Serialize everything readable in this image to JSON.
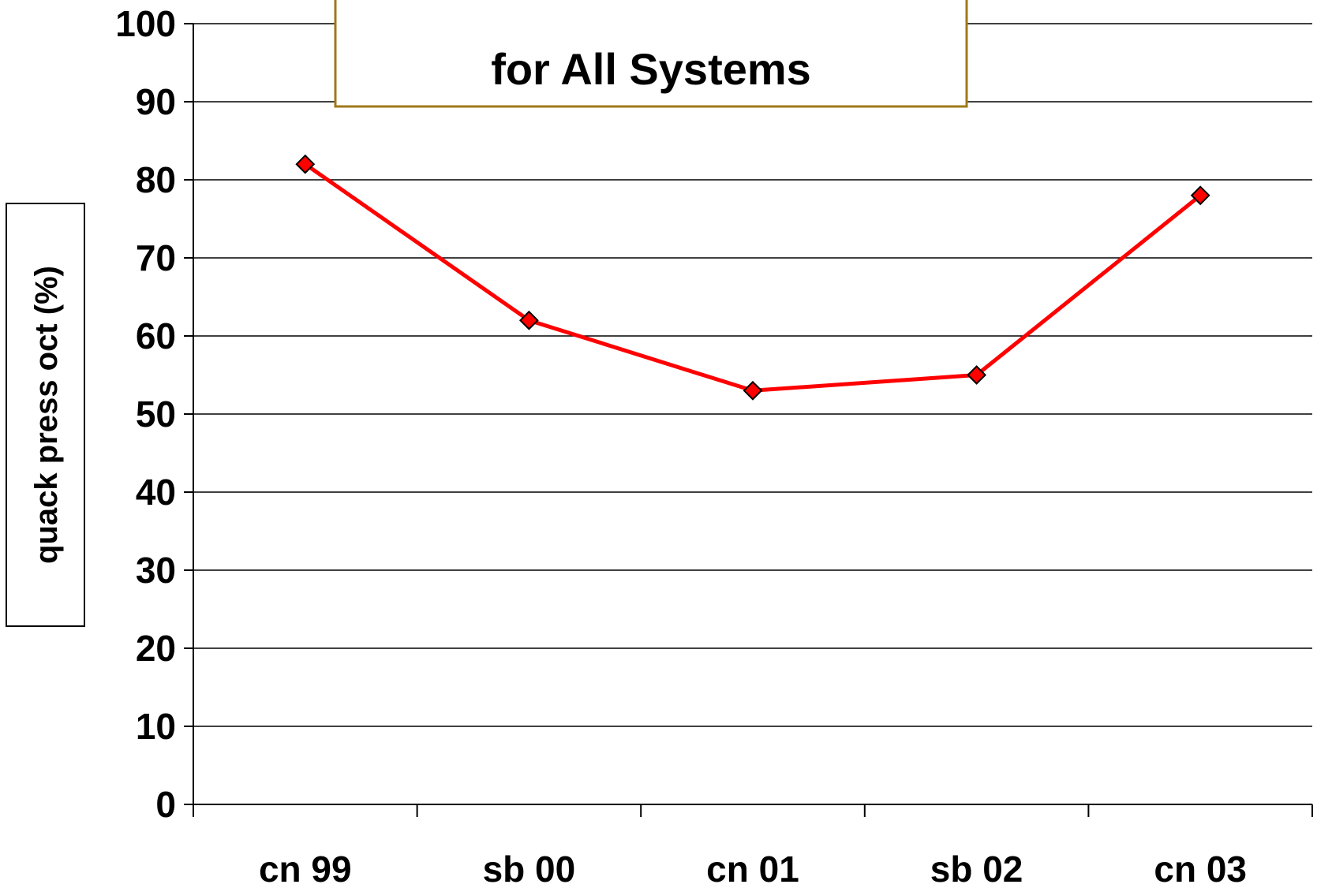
{
  "chart_data": {
    "type": "line",
    "title": "for  All Systems",
    "ylabel": "quack press oct (%)",
    "xlabel": "",
    "categories": [
      "cn 99",
      "sb 00",
      "cn 01",
      "sb 02",
      "cn 03"
    ],
    "series": [
      {
        "values": [
          82,
          62,
          53,
          55,
          78
        ]
      }
    ],
    "ylim": [
      0,
      100
    ],
    "yticks": [
      0,
      10,
      20,
      30,
      40,
      50,
      60,
      70,
      80,
      90,
      100
    ],
    "grid": true,
    "legend": "none",
    "colors": {
      "line": "#ff0000",
      "marker_fill": "#ff0000",
      "marker_stroke": "#000000",
      "title_border": "#a07818"
    }
  }
}
